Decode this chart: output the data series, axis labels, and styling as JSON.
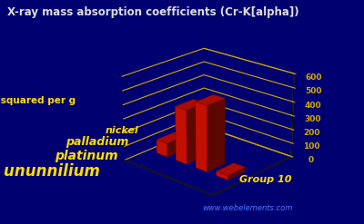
{
  "title": "X-ray mass absorption coefficients (Cr-K[alpha])",
  "ylabel": "cm squared per g",
  "xlabel": "Group 10",
  "elements": [
    "nickel",
    "palladium",
    "platinum",
    "ununnilium"
  ],
  "values": [
    98,
    390,
    470,
    30
  ],
  "bar_color_face": "#dd1100",
  "bar_color_dark": "#880000",
  "background_color": "#000070",
  "grid_color": "#ccaa00",
  "text_color": "#ffdd00",
  "title_color": "#dddddd",
  "ylim": [
    0,
    600
  ],
  "yticks": [
    0,
    100,
    200,
    300,
    400,
    500,
    600
  ],
  "watermark": "www.webelements.com",
  "watermark_color": "#5577ff",
  "elev": 22,
  "azim": -48
}
